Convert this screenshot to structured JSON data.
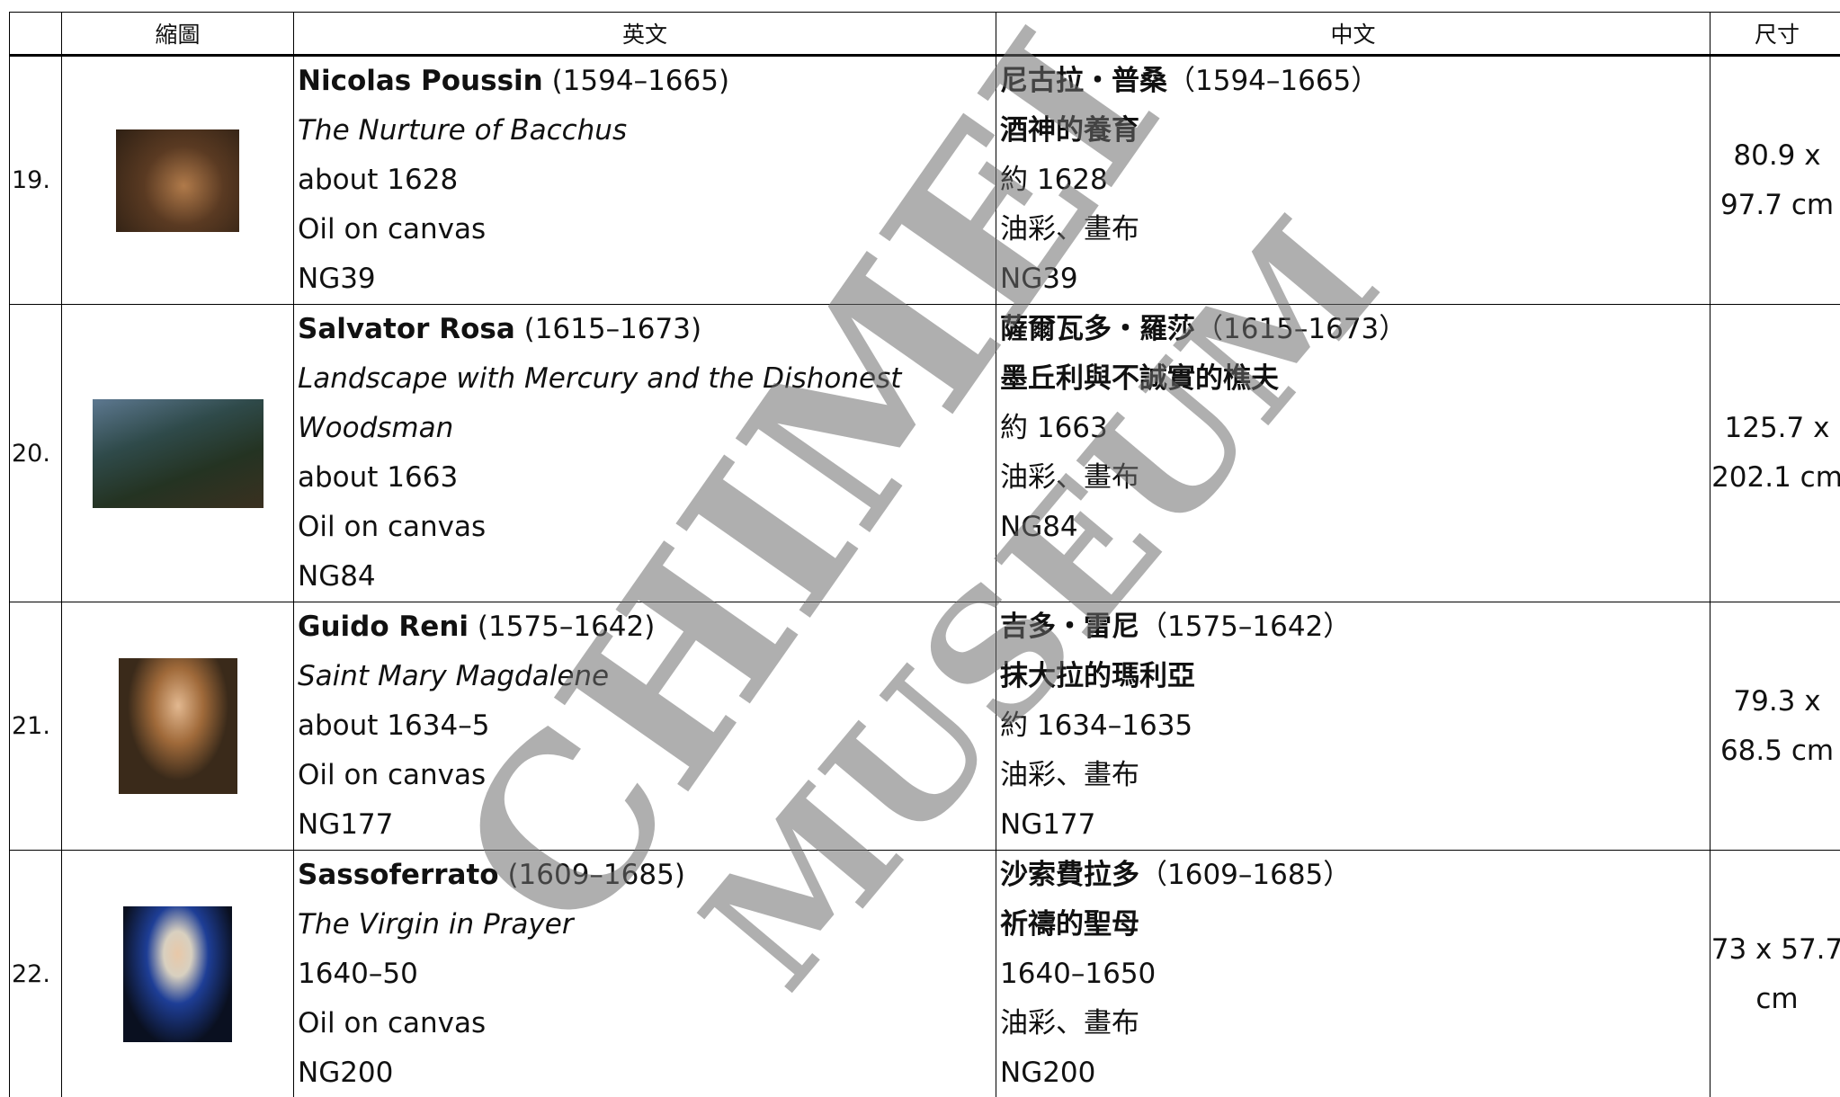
{
  "table": {
    "headers": [
      "縮圖",
      "英文",
      "中文",
      "尺寸"
    ],
    "rows": [
      {
        "number": "19.",
        "english": {
          "artist": "Nicolas Poussin",
          "dates": "(1594–1665)",
          "title": "The Nurture of Bacchus",
          "date": "about 1628",
          "medium": "Oil on canvas",
          "id": "NG39"
        },
        "chinese": {
          "artist": "尼古拉・普桑",
          "dates": "（1594–1665）",
          "title": "酒神的養育",
          "date": "約 1628",
          "medium": "油彩、畫布",
          "id": "NG39"
        },
        "size": "80.9 x 97.7 cm"
      },
      {
        "number": "20.",
        "english": {
          "artist": "Salvator Rosa",
          "dates": "(1615–1673)",
          "title": "Landscape with Mercury and the Dishonest Woodsman",
          "date": "about 1663",
          "medium": "Oil on canvas",
          "id": "NG84"
        },
        "chinese": {
          "artist": "薩爾瓦多・羅莎",
          "dates": "（1615–1673）",
          "title": "墨丘利與不誠實的樵夫",
          "date": "約 1663",
          "medium": "油彩、畫布",
          "id": "NG84"
        },
        "size": "125.7 x 202.1 cm"
      },
      {
        "number": "21.",
        "english": {
          "artist": "Guido Reni",
          "dates": "(1575–1642)",
          "title": "Saint Mary Magdalene",
          "date": "about 1634–5",
          "medium": "Oil on canvas",
          "id": "NG177"
        },
        "chinese": {
          "artist": "吉多・雷尼",
          "dates": "（1575–1642）",
          "title": "抹大拉的瑪利亞",
          "date": "約 1634–1635",
          "medium": "油彩、畫布",
          "id": "NG177"
        },
        "size": "79.3 x 68.5 cm"
      },
      {
        "number": "22.",
        "english": {
          "artist": "Sassoferrato",
          "dates": "(1609–1685)",
          "title": "The Virgin in Prayer",
          "date": "1640–50",
          "medium": "Oil on canvas",
          "id": "NG200"
        },
        "chinese": {
          "artist": "沙索費拉多",
          "dates": "（1609–1685）",
          "title": "祈禱的聖母",
          "date": "1640–1650",
          "medium": "油彩、畫布",
          "id": "NG200"
        },
        "size": "73 x 57.7 cm"
      }
    ]
  },
  "watermark": {
    "line1": "CHIMEI",
    "line2": "MUSEUM"
  }
}
